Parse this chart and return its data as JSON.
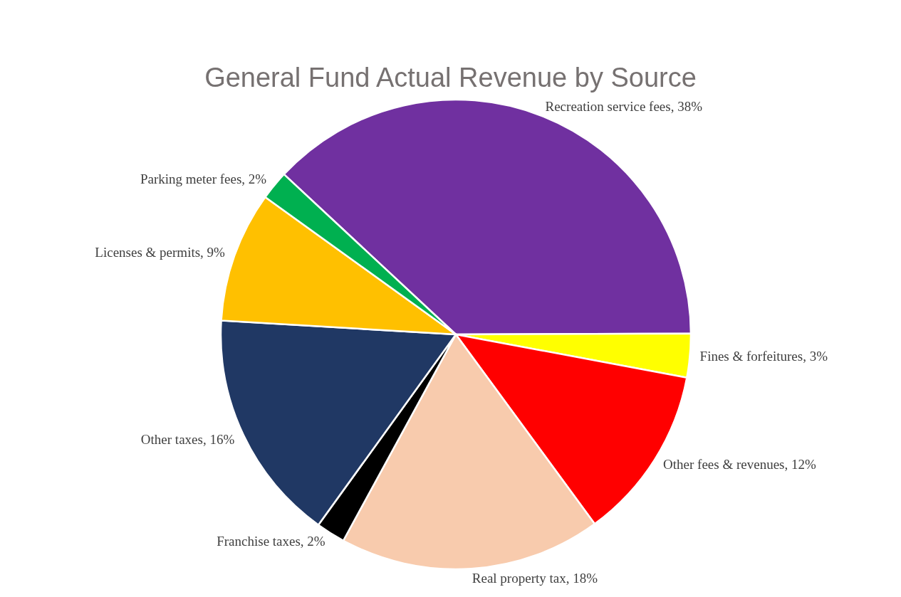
{
  "chart_data": {
    "type": "pie",
    "title": "General Fund Actual Revenue by Source",
    "categories": [
      "Recreation service fees",
      "Fines & forfeitures",
      "Other fees & revenues",
      "Real property tax",
      "Franchise taxes",
      "Other taxes",
      "Licenses & permits",
      "Parking meter fees"
    ],
    "values": [
      38,
      3,
      12,
      18,
      2,
      16,
      9,
      2
    ],
    "value_labels": [
      "38%",
      "3%",
      "12%",
      "18%",
      "2%",
      "16%",
      "9%",
      "2%"
    ],
    "colors": [
      "#7030a0",
      "#ffff00",
      "#ff0000",
      "#f8cbad",
      "#000000",
      "#203864",
      "#ffc000",
      "#00b050"
    ],
    "legend": false
  }
}
